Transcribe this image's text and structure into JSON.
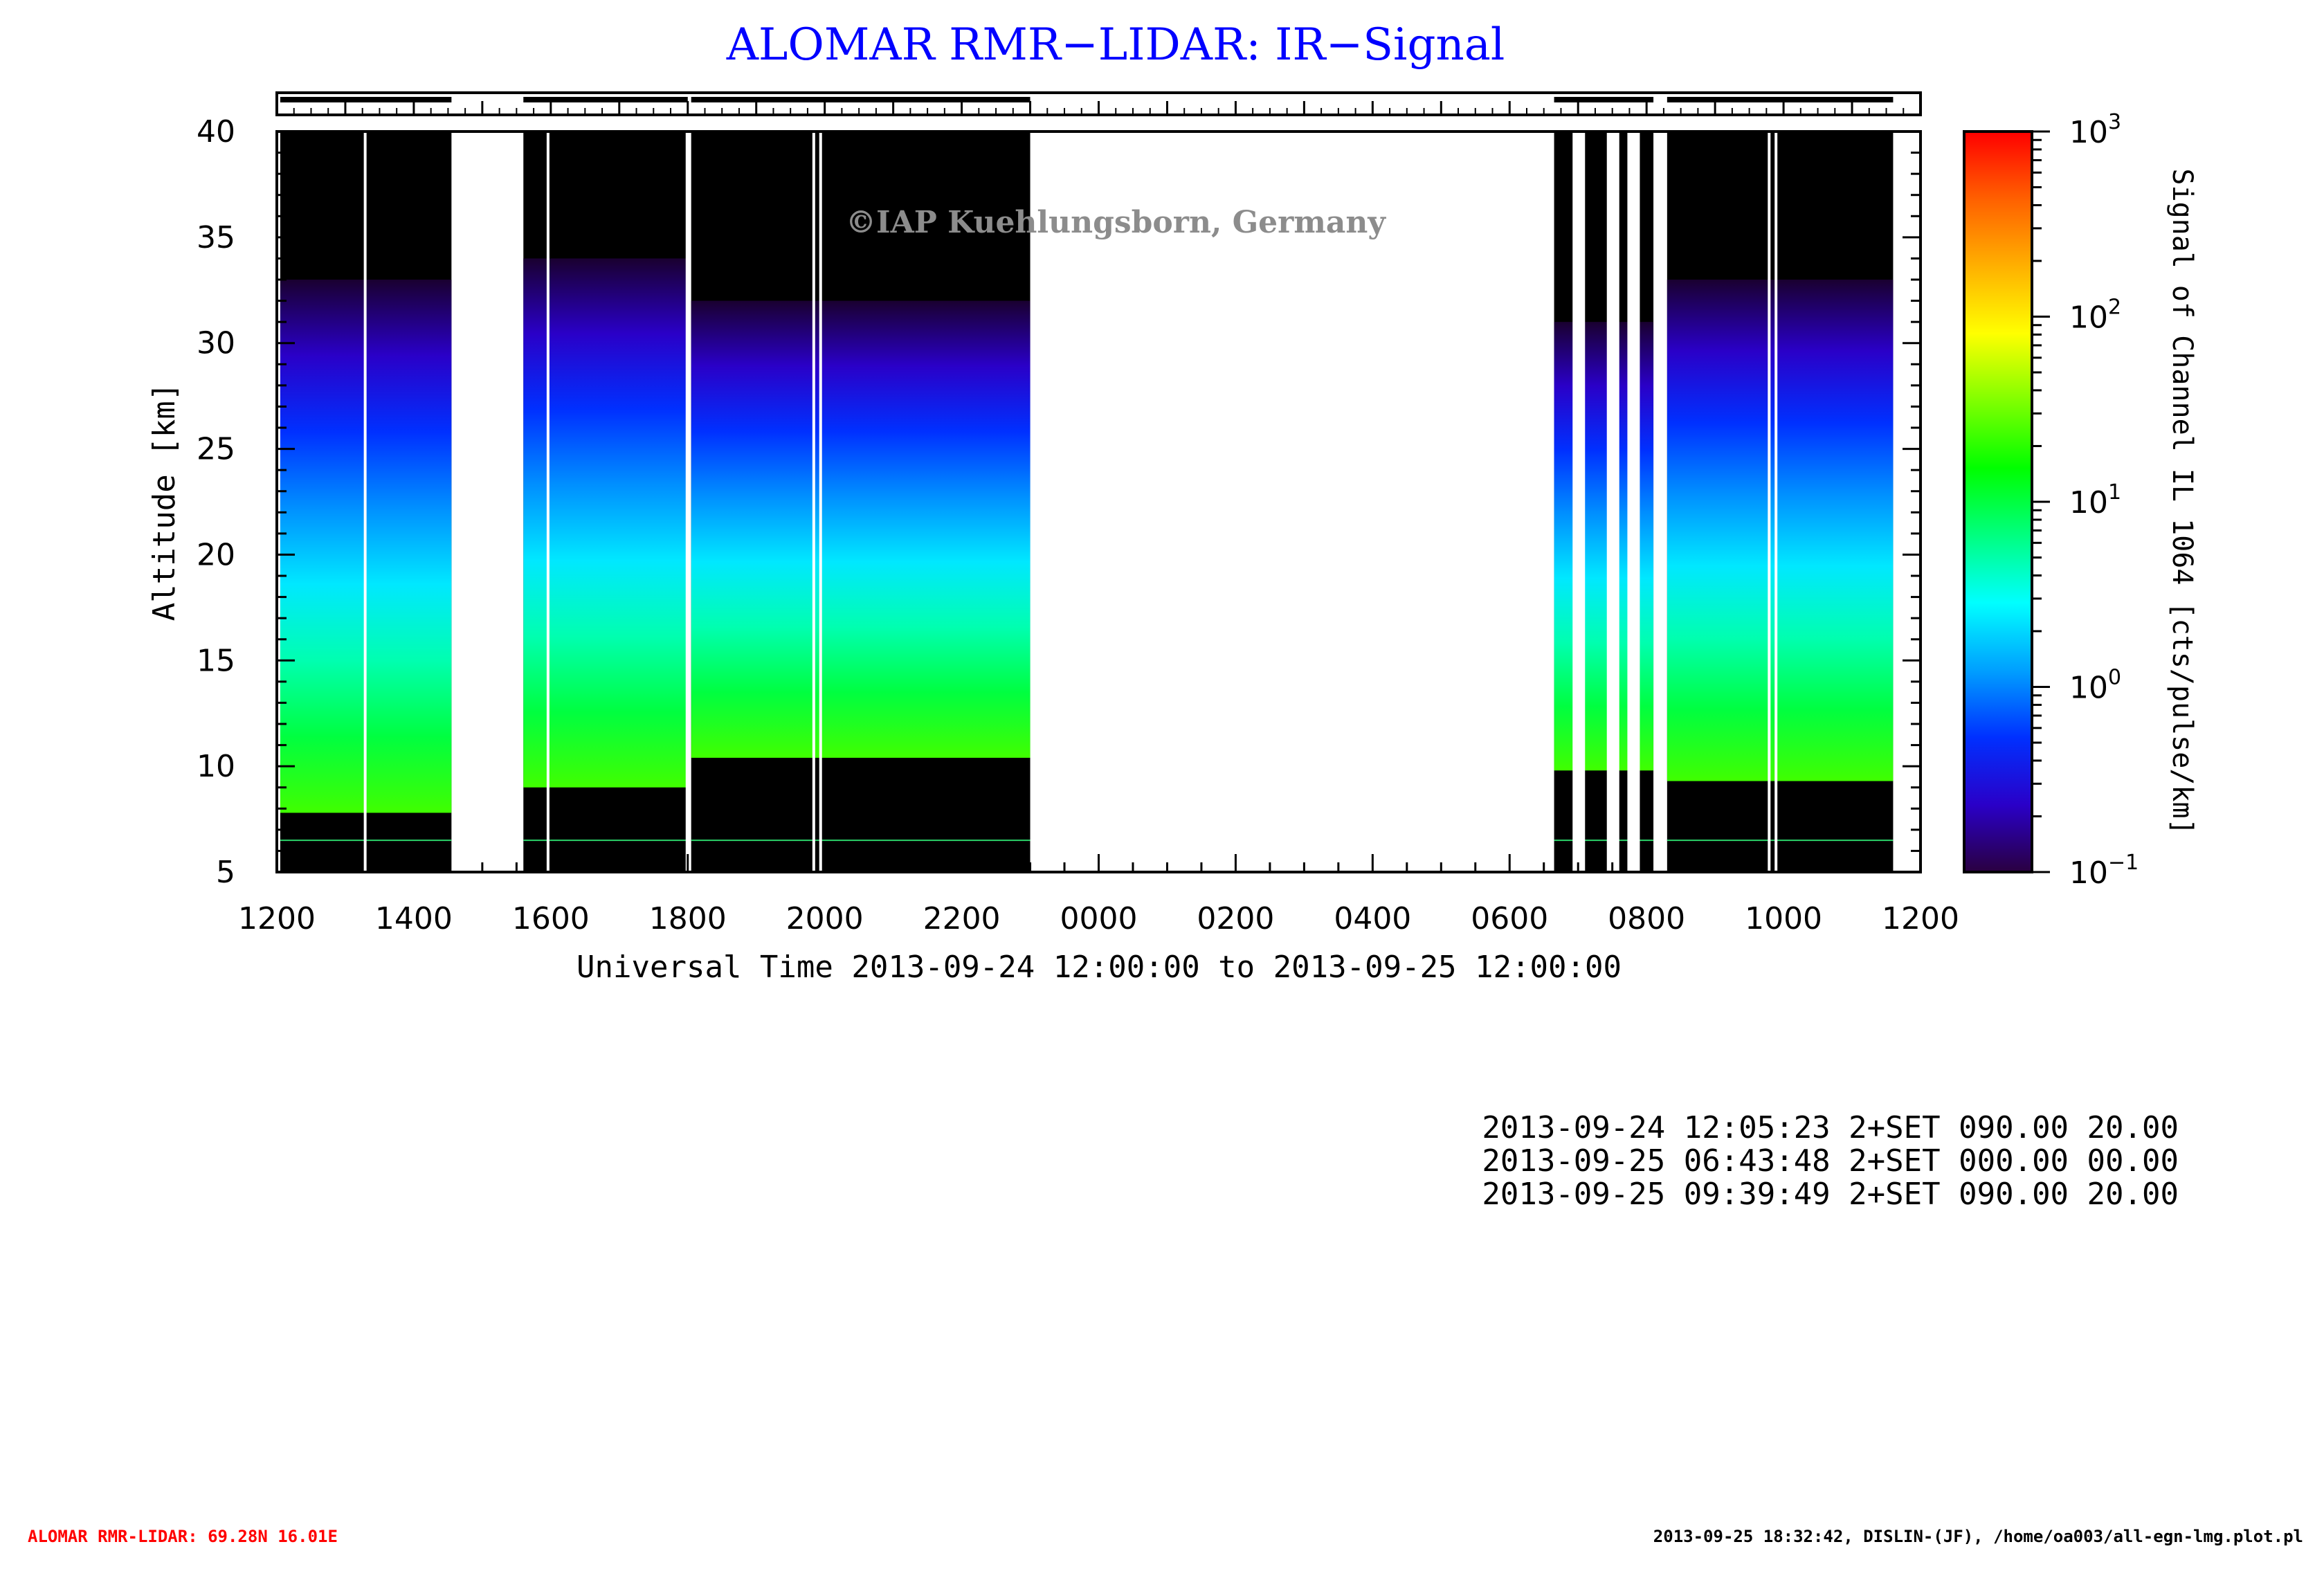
{
  "chart_data": {
    "type": "heatmap",
    "title": "ALOMAR RMR−LIDAR: IR−Signal",
    "watermark": "©IAP Kuehlungsborn, Germany",
    "xlabel": "Universal Time 2013-09-24 12:00:00 to 2013-09-25 12:00:00",
    "ylabel": "Altitude [km]",
    "xlim": [
      12,
      36
    ],
    "ylim": [
      5,
      40
    ],
    "x_tick_labels": [
      "1200",
      "1400",
      "1600",
      "1800",
      "2000",
      "2200",
      "0000",
      "0200",
      "0400",
      "0600",
      "0800",
      "1000",
      "1200"
    ],
    "y_tick_labels": [
      "5",
      "10",
      "15",
      "20",
      "25",
      "30",
      "35",
      "40"
    ],
    "colorbar": {
      "label": "Signal of Channel IL 1064 [cts/pulse/km]",
      "scale": "log",
      "range": [
        0.1,
        1000
      ],
      "tick_labels": [
        {
          "base": "10",
          "exp": "−1",
          "value": 0.1
        },
        {
          "base": "10",
          "exp": "0",
          "value": 1
        },
        {
          "base": "10",
          "exp": "1",
          "value": 10
        },
        {
          "base": "10",
          "exp": "2",
          "value": 100
        },
        {
          "base": "10",
          "exp": "3",
          "value": 1000
        }
      ],
      "colors": [
        "#2a0040",
        "#2a00c8",
        "#0030ff",
        "#00a0ff",
        "#00ffff",
        "#00ff80",
        "#00ff00",
        "#80ff00",
        "#ffff00",
        "#ffb000",
        "#ff6000",
        "#ff0000"
      ]
    },
    "measurement_segments": [
      {
        "start": 12.05,
        "end": 14.55,
        "cloud_base_km": 7.8,
        "signal_top_km": 33
      },
      {
        "start": 15.6,
        "end": 18.0,
        "cloud_base_km": 9.0,
        "signal_top_km": 34
      },
      {
        "start": 18.05,
        "end": 23.0,
        "cloud_base_km": 10.4,
        "signal_top_km": 32
      },
      {
        "start": 30.65,
        "end": 32.1,
        "cloud_base_km": 9.8,
        "signal_top_km": 31
      },
      {
        "start": 32.3,
        "end": 35.6,
        "cloud_base_km": 9.3,
        "signal_top_km": 33
      }
    ]
  },
  "run_log": [
    "2013-09-24 12:05:23 2+SET 090.00 20.00",
    "2013-09-25 06:43:48 2+SET 000.00 00.00",
    "2013-09-25 09:39:49 2+SET 090.00 20.00"
  ],
  "footer": {
    "station": "ALOMAR RMR-LIDAR: 69.28N 16.01E",
    "station_color": "#ff0000",
    "info": "2013-09-25 18:32:42, DISLIN-(JF), /home/oa003/all-egn-lmg.plot.pl"
  },
  "colors": {
    "title": "#0000ff",
    "watermark": "#8c8c8c",
    "axes": "#000000"
  }
}
